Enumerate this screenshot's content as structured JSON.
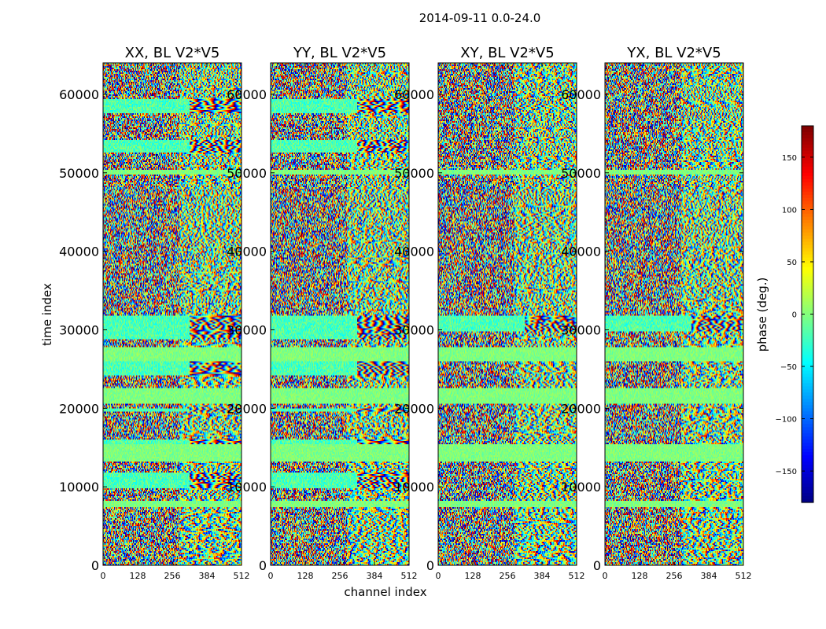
{
  "chart_data": {
    "type": "heatmap",
    "suptitle": "2014-09-11 0.0-24.0",
    "xlabel": "channel index",
    "ylabel": "time index",
    "xlim": [
      0,
      512
    ],
    "ylim": [
      0,
      64000
    ],
    "x_ticks": [
      0,
      128,
      256,
      384,
      512
    ],
    "y_ticks": [
      0,
      10000,
      20000,
      30000,
      40000,
      50000,
      60000
    ],
    "panels": [
      {
        "title": "XX, BL V2*V5",
        "pol": "XX"
      },
      {
        "title": "YY, BL V2*V5",
        "pol": "YY"
      },
      {
        "title": "XY, BL V2*V5",
        "pol": "XY"
      },
      {
        "title": "YX, BL V2*V5",
        "pol": "YX"
      }
    ],
    "colorbar": {
      "label": "phase (deg.)",
      "range": [
        -180,
        180
      ],
      "ticks": [
        150,
        100,
        50,
        0,
        -50,
        -100,
        -150
      ],
      "tick_labels": [
        "150",
        "100",
        "50",
        "0",
        "−50",
        "−100",
        "−150"
      ],
      "colormap": "jet"
    }
  }
}
